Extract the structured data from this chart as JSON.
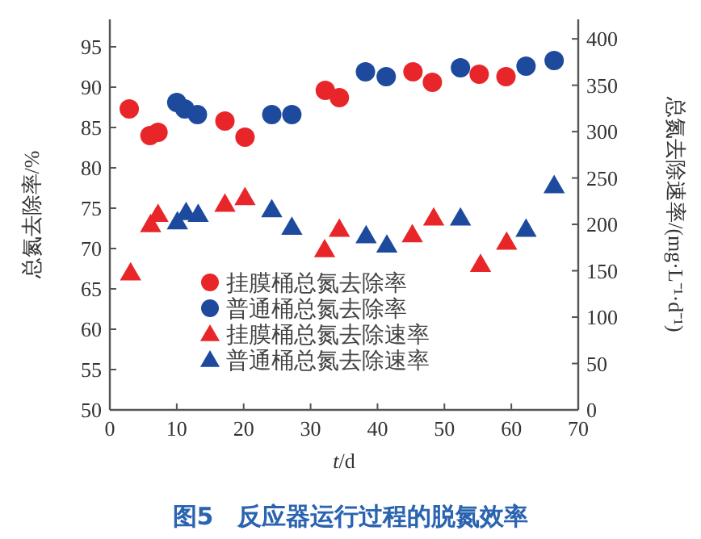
{
  "chart_data": {
    "type": "scatter",
    "title": "图5　反应器运行过程的脱氮效率",
    "xlabel": "t/d",
    "ylabel": "总氮去除率/%",
    "y2label": "总氮去除速率/(mg·L⁻¹·d⁻¹)",
    "xlim": [
      0,
      70
    ],
    "xticks": [
      0,
      10,
      20,
      30,
      40,
      50,
      60,
      70
    ],
    "ylim": [
      50,
      98.4
    ],
    "yticks": [
      50,
      55,
      60,
      65,
      70,
      75,
      80,
      85,
      90,
      95
    ],
    "y2lim": [
      0,
      421
    ],
    "y2ticks": [
      0,
      50,
      100,
      150,
      200,
      250,
      300,
      350,
      400
    ],
    "legend": "bottom",
    "series": [
      {
        "name": "挂膜桶总氮去除率",
        "color": "#e8262a",
        "marker": "circle",
        "x": [
          2.9,
          6.0,
          7.2,
          17.2,
          20.2,
          32.2,
          34.3,
          45.3,
          48.2,
          55.2,
          59.2
        ],
        "values": [
          87.3,
          84.0,
          84.4,
          85.8,
          83.8,
          89.6,
          88.7,
          91.9,
          90.6,
          91.6,
          91.3
        ]
      },
      {
        "name": "普通桶总氮去除率",
        "color": "#1d4a9c",
        "marker": "circle",
        "x": [
          10.0,
          11.2,
          13.1,
          24.2,
          27.2,
          38.2,
          41.3,
          52.4,
          62.2,
          66.4
        ],
        "values": [
          88.1,
          87.3,
          86.6,
          86.6,
          86.6,
          91.9,
          91.3,
          92.4,
          92.6,
          93.3
        ]
      },
      {
        "name": "挂膜桶总氮去除速率",
        "color": "#e8262a",
        "marker": "triangle",
        "axis": "y2",
        "x": [
          3.1,
          6.1,
          7.2,
          17.2,
          20.2,
          32.1,
          34.3,
          45.2,
          48.4,
          55.4,
          59.3
        ],
        "values": [
          148,
          200,
          211,
          222,
          229,
          173,
          195,
          189,
          207,
          157,
          181
        ]
      },
      {
        "name": "普通桶总氮去除速率",
        "color": "#1d4a9c",
        "marker": "triangle",
        "axis": "y2",
        "x": [
          10.1,
          11.4,
          13.2,
          24.2,
          27.2,
          38.3,
          41.4,
          52.4,
          62.2,
          66.4
        ],
        "values": [
          203,
          213,
          211,
          216,
          197,
          188,
          178,
          207,
          195,
          242
        ]
      }
    ]
  }
}
